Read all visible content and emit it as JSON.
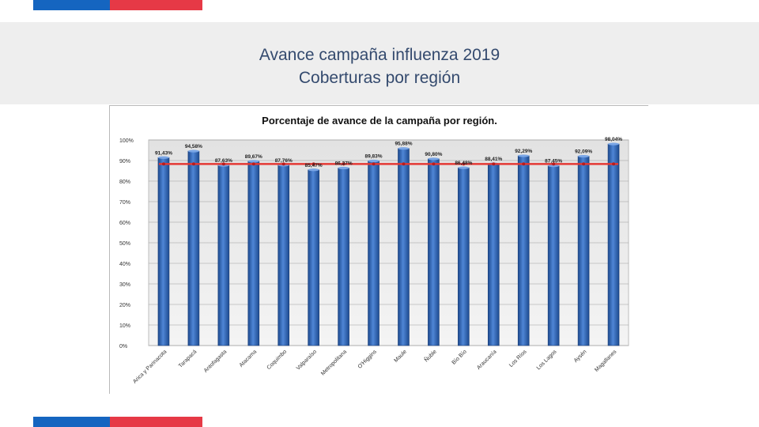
{
  "slide": {
    "title_line1": "Avance campaña influenza 2019",
    "title_line2": "Coberturas por región"
  },
  "colors": {
    "accent_blue": "#1565c0",
    "accent_red": "#e63946",
    "bar_fill": "#3b6fc0",
    "average_line": "#e53935",
    "title_text": "#344a6e"
  },
  "chart_data": {
    "type": "bar",
    "title": "Porcentaje de avance de la campaña por región.",
    "xlabel": "",
    "ylabel": "",
    "ylim": [
      0,
      100
    ],
    "ytick_labels": [
      "0%",
      "10%",
      "20%",
      "30%",
      "40%",
      "50%",
      "60%",
      "70%",
      "80%",
      "90%",
      "100%"
    ],
    "grid": true,
    "categories": [
      "Arica y Parinacota",
      "Tarapacá",
      "Antofagasta",
      "Atacama",
      "Coquimbo",
      "Valparaíso",
      "Metropolitana",
      "O'Higgins",
      "Maule",
      "Ñuble",
      "Bío Bío",
      "Araucanía",
      "Los Ríos",
      "Los Lagos",
      "Aysén",
      "Magallanes"
    ],
    "values": [
      91.43,
      94.58,
      87.63,
      89.67,
      87.76,
      85.47,
      86.37,
      89.83,
      95.88,
      90.8,
      86.48,
      88.41,
      92.29,
      87.45,
      92.09,
      98.04
    ],
    "value_labels": [
      "91,43%",
      "94,58%",
      "87,63%",
      "89,67%",
      "87,76%",
      "85,47%",
      "86,37%",
      "89,83%",
      "95,88%",
      "90,80%",
      "86,48%",
      "88,41%",
      "92,29%",
      "87,45%",
      "92,09%",
      "98,04%"
    ],
    "average_line": {
      "value": 88.3
    }
  }
}
